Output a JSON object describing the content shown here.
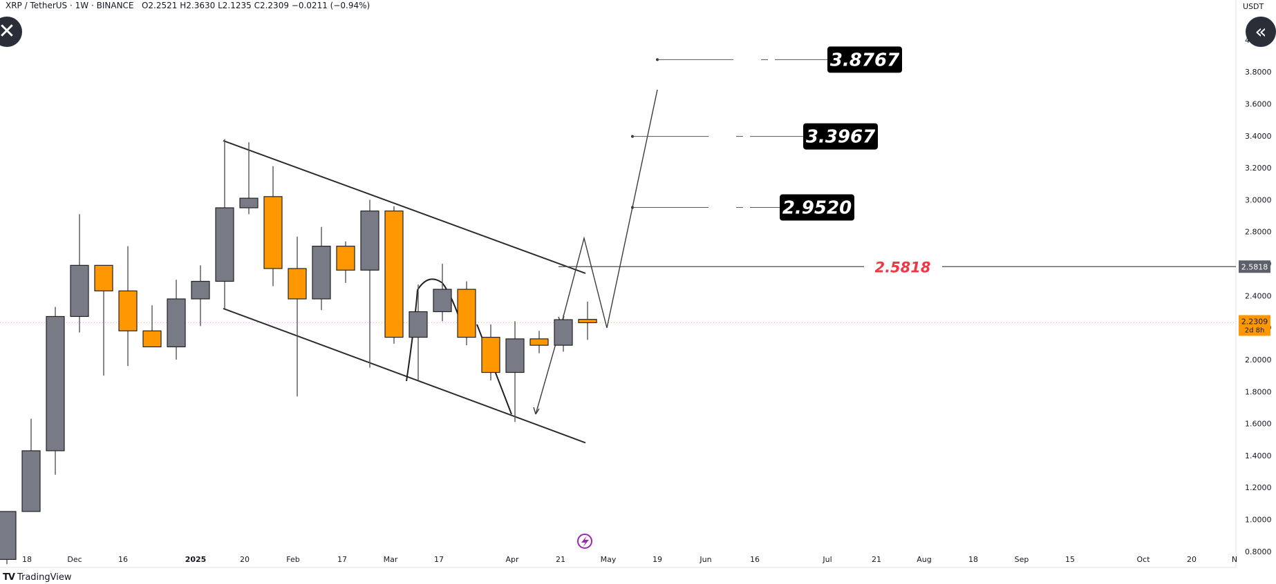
{
  "header": {
    "symbol": "XRP / TetherUS",
    "interval": "1W",
    "exchange": "BINANCE",
    "open": "O2.2521",
    "high": "H2.3630",
    "low": "L2.1235",
    "close": "C2.2309",
    "change": "−0.0211 (−0.94%)"
  },
  "currency_label": "USDT",
  "branding": "TradingView",
  "buttons": {
    "close_icon": "close-icon",
    "collapse_icon": "double-chevron-left-icon"
  },
  "colors": {
    "up": "#787b86",
    "down": "#ff9800",
    "annotation_line": "#2b2b2b",
    "key_level": "#f23645",
    "box_bg": "#000000"
  },
  "chart_data": {
    "type": "candlestick",
    "interval": "1W",
    "ylim": [
      0.7,
      4.25
    ],
    "y_ticks": [
      "0.8000",
      "1.0000",
      "1.2000",
      "1.4000",
      "1.6000",
      "1.8000",
      "2.0000",
      "2.2000",
      "2.4000",
      "2.6000",
      "2.8000",
      "3.0000",
      "3.2000",
      "3.4000",
      "3.6000",
      "3.8000",
      "4.0000"
    ],
    "x_ticks": [
      "18",
      "Dec",
      "16",
      "2025",
      "20",
      "Feb",
      "17",
      "Mar",
      "17",
      "Apr",
      "21",
      "May",
      "19",
      "Jun",
      "16",
      "Jul",
      "21",
      "Aug",
      "18",
      "Sep",
      "15",
      "Oct",
      "20"
    ],
    "candles": [
      {
        "o": 0.75,
        "h": 1.05,
        "l": 0.72,
        "c": 1.05
      },
      {
        "o": 1.05,
        "h": 1.63,
        "l": 1.05,
        "c": 1.43
      },
      {
        "o": 1.43,
        "h": 2.33,
        "l": 1.28,
        "c": 2.27
      },
      {
        "o": 2.27,
        "h": 2.91,
        "l": 2.17,
        "c": 2.59
      },
      {
        "o": 2.59,
        "h": 2.59,
        "l": 1.9,
        "c": 2.43
      },
      {
        "o": 2.43,
        "h": 2.71,
        "l": 1.96,
        "c": 2.18
      },
      {
        "o": 2.18,
        "h": 2.34,
        "l": 2.08,
        "c": 2.08
      },
      {
        "o": 2.08,
        "h": 2.5,
        "l": 2.0,
        "c": 2.38
      },
      {
        "o": 2.38,
        "h": 2.59,
        "l": 2.21,
        "c": 2.49
      },
      {
        "o": 2.49,
        "h": 3.38,
        "l": 2.32,
        "c": 2.95
      },
      {
        "o": 2.95,
        "h": 3.36,
        "l": 2.91,
        "c": 3.01
      },
      {
        "o": 3.02,
        "h": 3.21,
        "l": 2.46,
        "c": 2.57
      },
      {
        "o": 2.57,
        "h": 2.77,
        "l": 1.77,
        "c": 2.38
      },
      {
        "o": 2.38,
        "h": 2.83,
        "l": 2.31,
        "c": 2.71
      },
      {
        "o": 2.71,
        "h": 2.74,
        "l": 2.48,
        "c": 2.56
      },
      {
        "o": 2.56,
        "h": 3.0,
        "l": 1.95,
        "c": 2.93
      },
      {
        "o": 2.93,
        "h": 2.96,
        "l": 2.1,
        "c": 2.14
      },
      {
        "o": 2.14,
        "h": 2.47,
        "l": 1.87,
        "c": 2.3
      },
      {
        "o": 2.3,
        "h": 2.6,
        "l": 2.24,
        "c": 2.44
      },
      {
        "o": 2.44,
        "h": 2.49,
        "l": 2.09,
        "c": 2.14
      },
      {
        "o": 2.14,
        "h": 2.22,
        "l": 1.87,
        "c": 1.92
      },
      {
        "o": 1.92,
        "h": 2.24,
        "l": 1.61,
        "c": 2.13
      },
      {
        "o": 2.13,
        "h": 2.18,
        "l": 2.04,
        "c": 2.09
      },
      {
        "o": 2.09,
        "h": 2.28,
        "l": 2.05,
        "c": 2.25
      },
      {
        "o": 2.252,
        "h": 2.363,
        "l": 2.124,
        "c": 2.231
      }
    ],
    "current_price": {
      "label": "2.2309",
      "countdown": "2d 8h"
    },
    "key_level": {
      "label": "2.5818",
      "value": 2.5818
    },
    "targets": [
      {
        "label": "3.8767",
        "value": 3.8767
      },
      {
        "label": "3.3967",
        "value": 3.3967
      },
      {
        "label": "2.9520",
        "value": 2.952
      }
    ],
    "channel": {
      "upper": [
        [
          9,
          3.37
        ],
        [
          24,
          2.54
        ]
      ],
      "lower": [
        [
          9,
          2.32
        ],
        [
          24,
          1.48
        ]
      ]
    }
  }
}
